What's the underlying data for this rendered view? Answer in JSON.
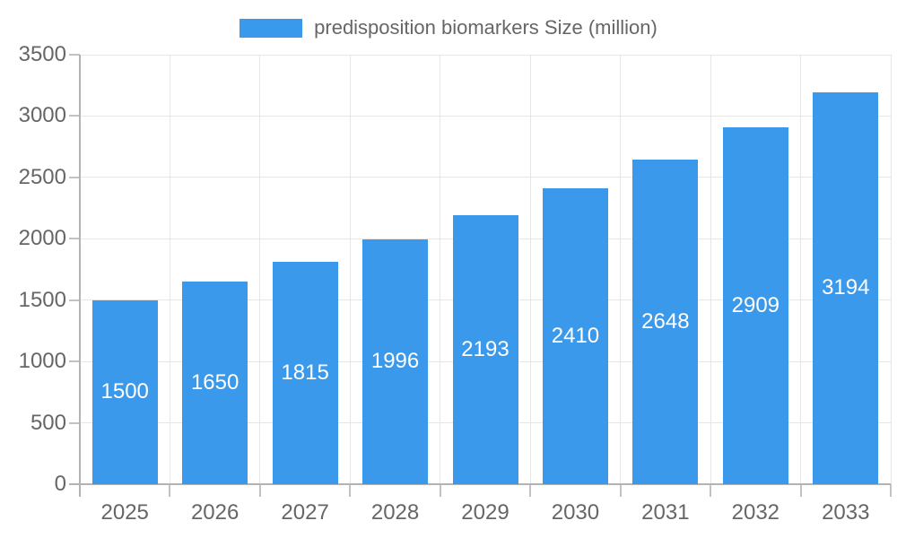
{
  "chart_data": {
    "type": "bar",
    "title": "",
    "legend_label": "predisposition biomarkers Size (million)",
    "legend_position": "top",
    "categories": [
      "2025",
      "2026",
      "2027",
      "2028",
      "2029",
      "2030",
      "2031",
      "2032",
      "2033"
    ],
    "values": [
      1500,
      1650,
      1815,
      1996,
      2193,
      2410,
      2648,
      2909,
      3194
    ],
    "xlabel": "",
    "ylabel": "",
    "ylim": [
      0,
      3500
    ],
    "yticks": [
      0,
      500,
      1000,
      1500,
      2000,
      2500,
      3000,
      3500
    ],
    "grid": true,
    "colors": {
      "bar": "#3B99EB",
      "bar_label_text": "#FFFFFF",
      "axis_text": "#666666",
      "legend_text": "#666666",
      "gridline": "#E6E6E6",
      "axis_line": "#B3B3B3",
      "tick": "#C2C2C2",
      "background": "#FFFFFF"
    }
  }
}
